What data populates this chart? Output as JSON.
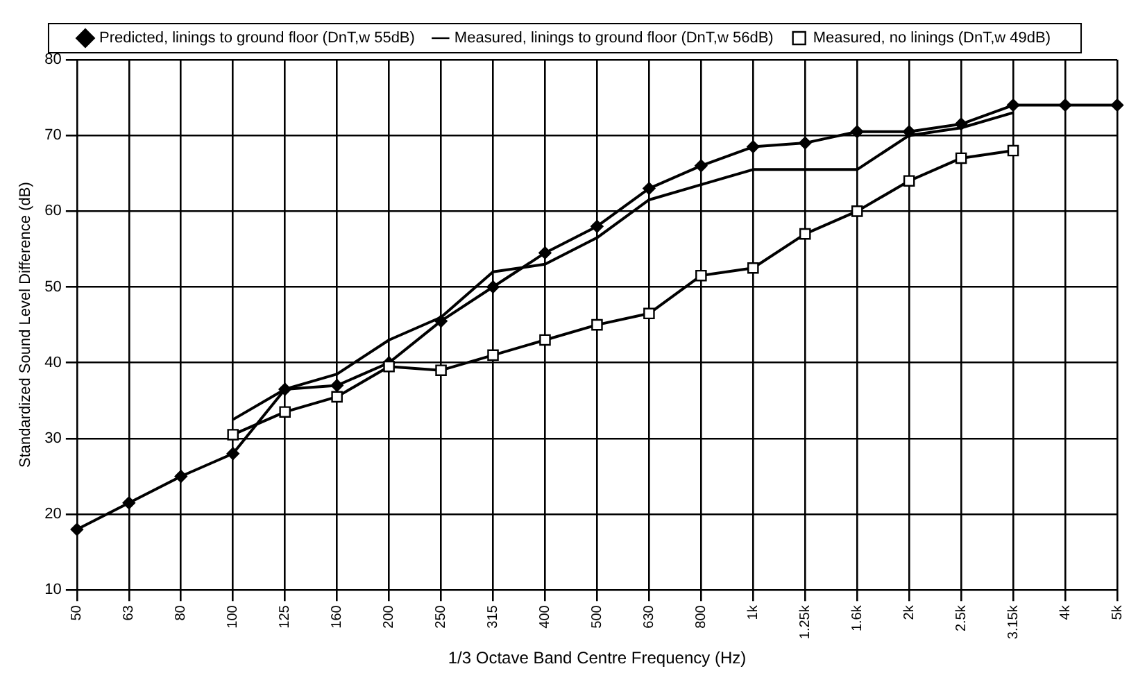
{
  "chart_data": {
    "type": "line",
    "xlabel": "1/3 Octave Band Centre Frequency (Hz)",
    "ylabel": "Standardized Sound Level Difference (dB)",
    "categories": [
      "50",
      "63",
      "80",
      "100",
      "125",
      "160",
      "200",
      "250",
      "315",
      "400",
      "500",
      "630",
      "800",
      "1k",
      "1.25k",
      "1.6k",
      "2k",
      "2.5k",
      "3.15k",
      "4k",
      "5k"
    ],
    "series": [
      {
        "name": "Predicted, linings to ground floor (DnT,w 55dB)",
        "color": "#000000",
        "marker": "diamond",
        "values": [
          18,
          21.5,
          25,
          28,
          36.5,
          37,
          40,
          45.5,
          50,
          54.5,
          58,
          63,
          66,
          68.5,
          69,
          70.5,
          70.5,
          71.5,
          74,
          74,
          74
        ]
      },
      {
        "name": "Measured, linings to ground floor (DnT,w 56dB)",
        "color": "#000000",
        "marker": "none",
        "values": [
          null,
          null,
          null,
          32.5,
          36.5,
          38.5,
          43,
          46,
          52,
          53,
          56.5,
          61.5,
          63.5,
          65.5,
          65.5,
          65.5,
          70,
          71,
          73,
          null,
          null
        ]
      },
      {
        "name": "Measured, no linings (DnT,w 49dB)",
        "color": "#000000",
        "marker": "square",
        "values": [
          null,
          null,
          null,
          30.5,
          33.5,
          35.5,
          39.5,
          39,
          41,
          43,
          45,
          46.5,
          51.5,
          52.5,
          57,
          60,
          64,
          67,
          68,
          null,
          null
        ]
      }
    ],
    "ylim": [
      10,
      80
    ],
    "yticks": [
      10,
      20,
      30,
      40,
      50,
      60,
      70,
      80
    ],
    "grid": true,
    "legend": "top",
    "line_style": "solid"
  }
}
